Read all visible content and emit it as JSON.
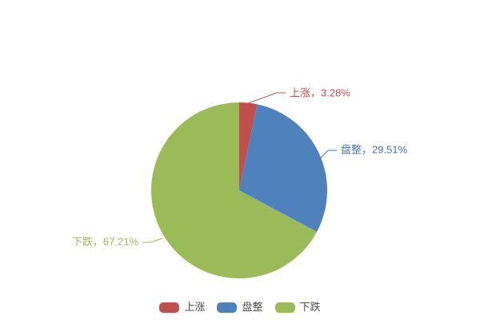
{
  "chart_data": {
    "type": "pie",
    "title": "",
    "labels": [
      "上涨",
      "盘整",
      "下跌"
    ],
    "values": [
      3.28,
      29.51,
      67.21
    ],
    "value_unit": "%",
    "colors": [
      "#c0504d",
      "#4f81bd",
      "#9bbb59"
    ],
    "label_text_colors": [
      "#c0504d",
      "#4677b4",
      "#9bbb59"
    ],
    "slice_labels": [
      "上涨，3.28%",
      "盘整，29.51%",
      "下跌，67.21%"
    ],
    "start_angle": "12 o'clock, clockwise",
    "background": "#ffffff",
    "legend": {
      "position": "bottom-center",
      "items": [
        {
          "label": "上涨",
          "color": "#c0504d"
        },
        {
          "label": "盘整",
          "color": "#4f81bd"
        },
        {
          "label": "下跌",
          "color": "#9bbb59"
        }
      ]
    }
  }
}
